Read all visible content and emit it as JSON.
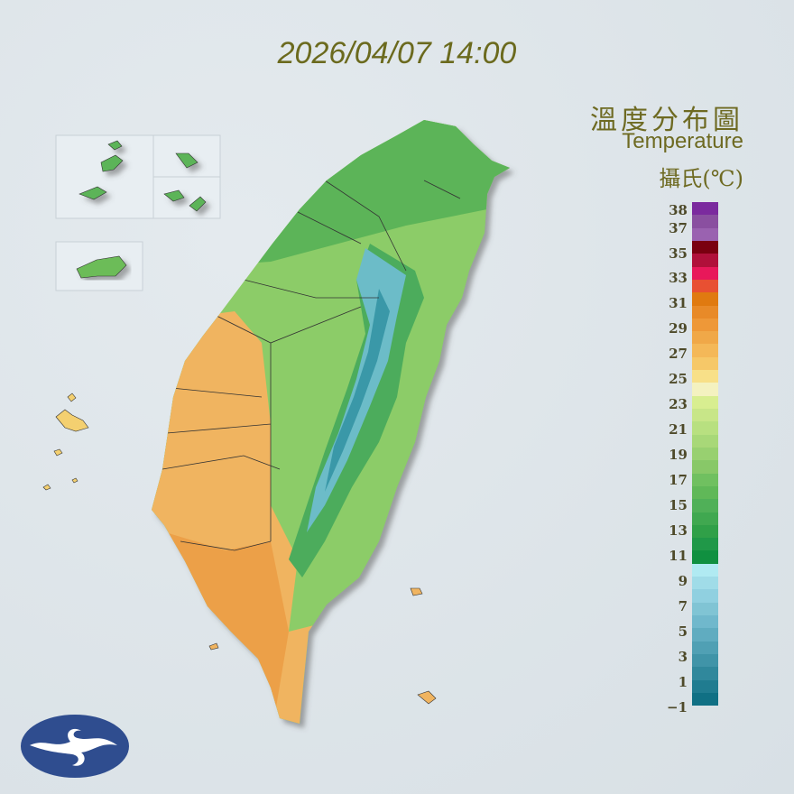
{
  "header": {
    "datetime": "2026/04/07 14:00"
  },
  "legend": {
    "title_zh": "溫度分布圖",
    "title_en": "Temperature",
    "unit": "攝氏(℃)",
    "ticks": [
      "38",
      "37",
      "35",
      "33",
      "31",
      "29",
      "27",
      "25",
      "23",
      "21",
      "19",
      "17",
      "15",
      "13",
      "11",
      "9",
      "7",
      "5",
      "3",
      "1",
      "−1"
    ],
    "colors": [
      "#7b2a9e",
      "#8a4fa0",
      "#9a62b0",
      "#7a0010",
      "#b0103a",
      "#e8185a",
      "#e85032",
      "#e07a10",
      "#e88a28",
      "#ee9838",
      "#f0a848",
      "#f4b858",
      "#f6c868",
      "#f8e088",
      "#f4f2c0",
      "#d8ee90",
      "#c8e688",
      "#b8e080",
      "#a8d878",
      "#98d070",
      "#88c868",
      "#70c060",
      "#60b858",
      "#50b058",
      "#40a850",
      "#30a048",
      "#209848",
      "#109040",
      "#b0eaf2",
      "#a0dce8",
      "#90d0e0",
      "#80c4d4",
      "#70b8cc",
      "#60acc0",
      "#50a0b4",
      "#4094a8",
      "#30889c",
      "#207c90",
      "#107084"
    ]
  },
  "map": {
    "region": "Taiwan",
    "colors": {
      "warm": "#f0b460",
      "north": "#78c060",
      "mountain": "#6cbcc8",
      "ridge": "#3a98a8"
    }
  },
  "logo": {
    "color": "#2f4d8f"
  }
}
